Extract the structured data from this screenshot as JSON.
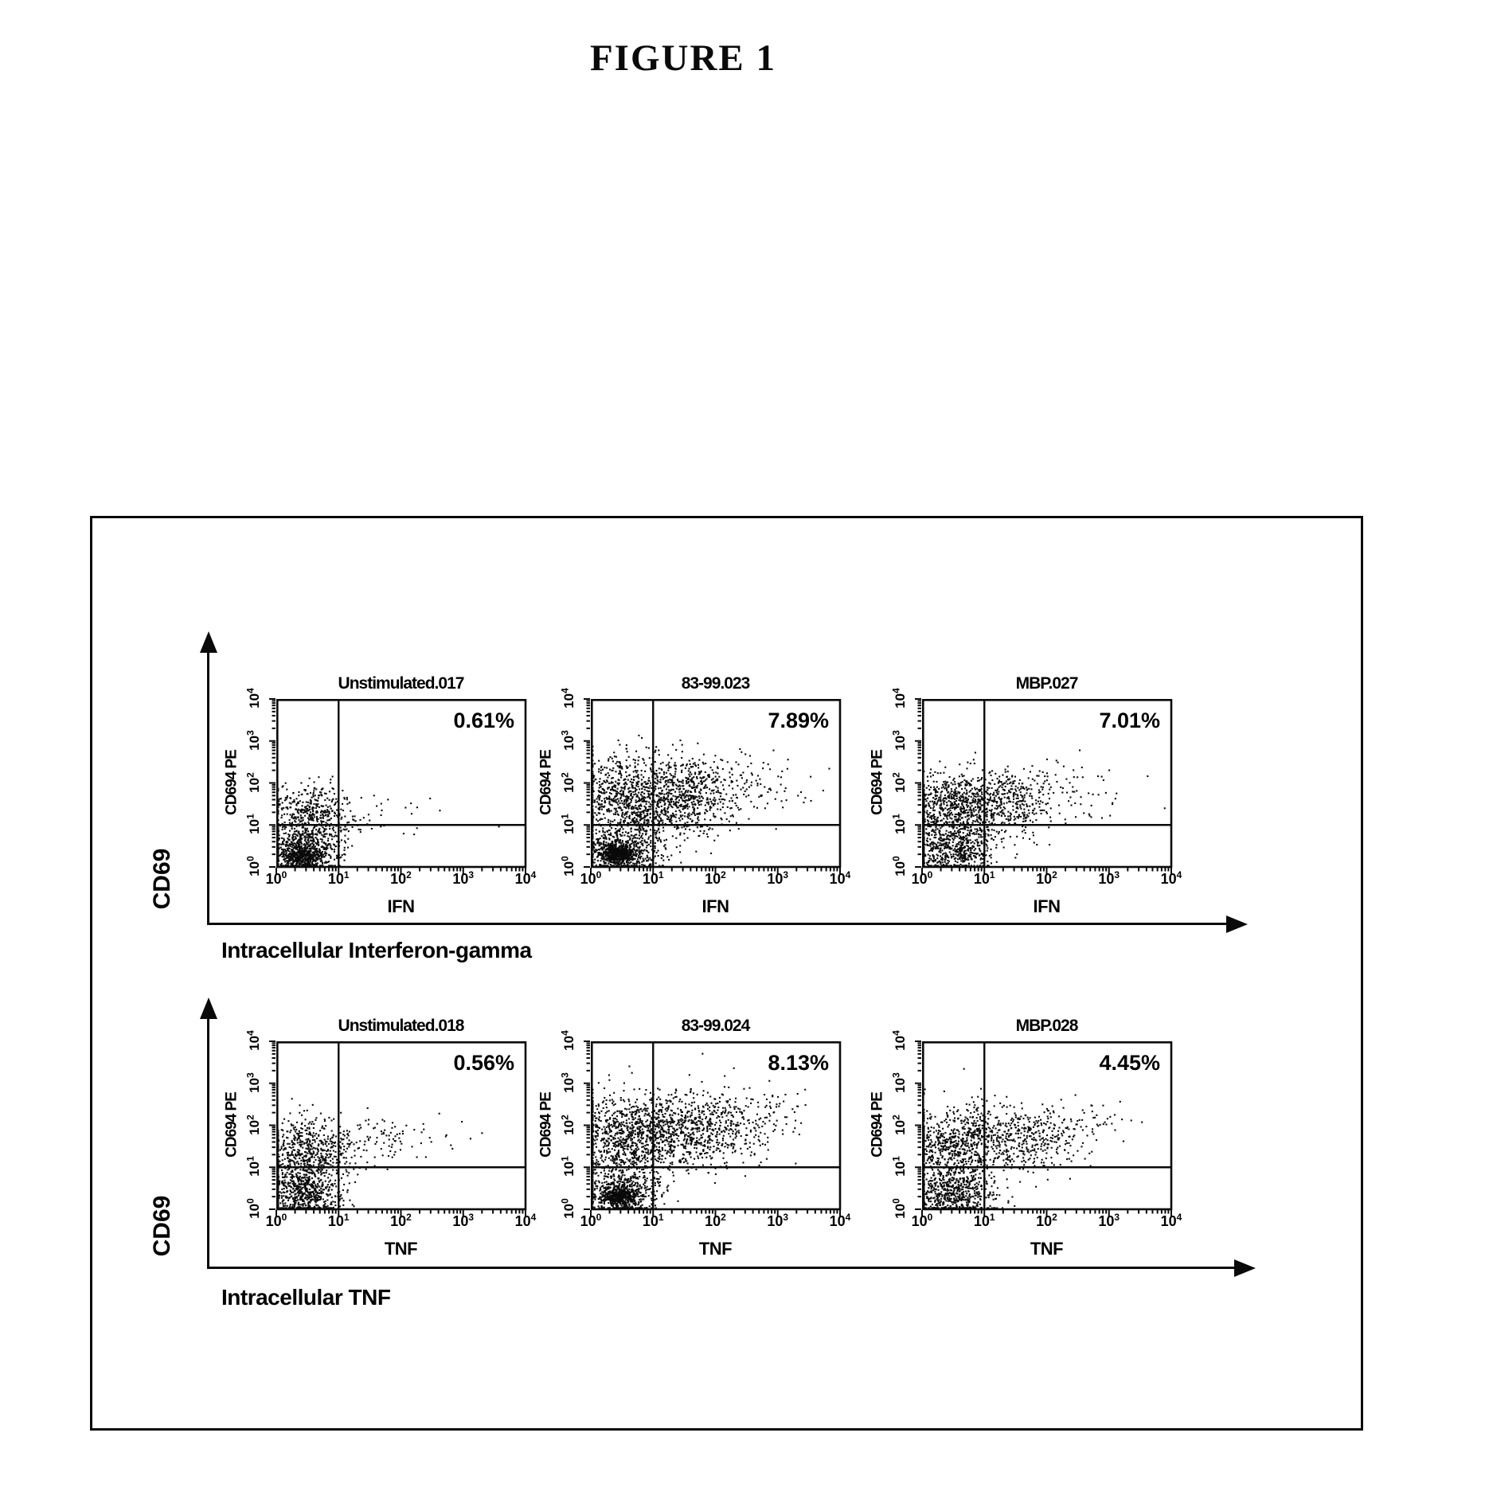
{
  "figure": {
    "title": "FIGURE 1"
  },
  "colors": {
    "ink": "#0a0a0a",
    "paper": "#ffffff"
  },
  "rows": [
    {
      "y_axis_big_label": "CD69",
      "caption": "Intracellular Interferon-gamma"
    },
    {
      "y_axis_big_label": "CD69",
      "caption": "Intracellular TNF"
    }
  ],
  "chart_data": {
    "type": "scatter",
    "description": "Six flow-cytometry dot plots (2 rows x 3). CD69-PE (log, y) versus intracellular cytokine stain (log, x). Number shown is percent of events in the upper-right quadrant. Quadrant gates at 10^1 on both axes.",
    "x_scale": "log10",
    "y_scale": "log10",
    "axis_range_decades": [
      0,
      4
    ],
    "tick_exponents": [
      0,
      1,
      2,
      3,
      4
    ],
    "quadrant_gates": {
      "x": 10,
      "y": 10
    },
    "seed": 1234,
    "plots": [
      {
        "row": 0,
        "title": "Unstimulated.017",
        "upper_right_pct": "0.61%",
        "xlabel": "IFN",
        "ylabel": "CD694 PE",
        "clusters": [
          [
            0.45,
            0.42,
            0.3,
            0.28,
            650
          ],
          [
            0.42,
            0.25,
            0.15,
            0.12,
            260
          ],
          [
            0.55,
            1.32,
            0.33,
            0.32,
            380
          ],
          [
            1.25,
            1.15,
            0.42,
            0.3,
            45
          ],
          [
            2.6,
            1.15,
            0.5,
            0.25,
            9
          ]
        ]
      },
      {
        "row": 0,
        "title": "83-99.023",
        "upper_right_pct": "7.89%",
        "xlabel": "IFN",
        "ylabel": "CD694 PE",
        "clusters": [
          [
            0.5,
            0.38,
            0.3,
            0.26,
            500
          ],
          [
            0.42,
            0.3,
            0.13,
            0.11,
            460
          ],
          [
            0.6,
            1.55,
            0.42,
            0.55,
            850
          ],
          [
            1.45,
            1.7,
            0.45,
            0.5,
            650
          ],
          [
            2.5,
            1.9,
            0.5,
            0.45,
            110
          ]
        ]
      },
      {
        "row": 0,
        "title": "MBP.027",
        "upper_right_pct": "7.01%",
        "xlabel": "IFN",
        "ylabel": "CD694 PE",
        "clusters": [
          [
            0.5,
            0.42,
            0.32,
            0.3,
            540
          ],
          [
            0.5,
            1.45,
            0.38,
            0.42,
            660
          ],
          [
            1.35,
            1.5,
            0.42,
            0.45,
            430
          ],
          [
            2.4,
            1.85,
            0.45,
            0.35,
            60
          ]
        ]
      },
      {
        "row": 1,
        "title": "Unstimulated.018",
        "upper_right_pct": "0.56%",
        "xlabel": "TNF",
        "ylabel": "CD694 PE",
        "clusters": [
          [
            0.45,
            0.4,
            0.3,
            0.3,
            640
          ],
          [
            0.5,
            1.35,
            0.36,
            0.38,
            540
          ],
          [
            1.55,
            1.65,
            0.5,
            0.32,
            95
          ],
          [
            2.45,
            1.9,
            0.3,
            0.25,
            8
          ]
        ]
      },
      {
        "row": 1,
        "title": "83-99.024",
        "upper_right_pct": "8.13%",
        "xlabel": "TNF",
        "ylabel": "CD694 PE",
        "clusters": [
          [
            0.5,
            0.38,
            0.32,
            0.28,
            520
          ],
          [
            0.45,
            0.3,
            0.14,
            0.12,
            360
          ],
          [
            0.6,
            1.7,
            0.45,
            0.5,
            870
          ],
          [
            1.6,
            1.9,
            0.55,
            0.45,
            760
          ],
          [
            2.85,
            2.2,
            0.4,
            0.35,
            70
          ]
        ]
      },
      {
        "row": 1,
        "title": "MBP.028",
        "upper_right_pct": "4.45%",
        "xlabel": "TNF",
        "ylabel": "CD694 PE",
        "clusters": [
          [
            0.5,
            0.36,
            0.32,
            0.28,
            570
          ],
          [
            0.55,
            1.5,
            0.4,
            0.45,
            690
          ],
          [
            1.6,
            1.75,
            0.5,
            0.4,
            440
          ],
          [
            2.75,
            2.1,
            0.35,
            0.3,
            40
          ]
        ]
      }
    ]
  },
  "layout_note_values": {
    "x_tick_prefix": "10"
  }
}
